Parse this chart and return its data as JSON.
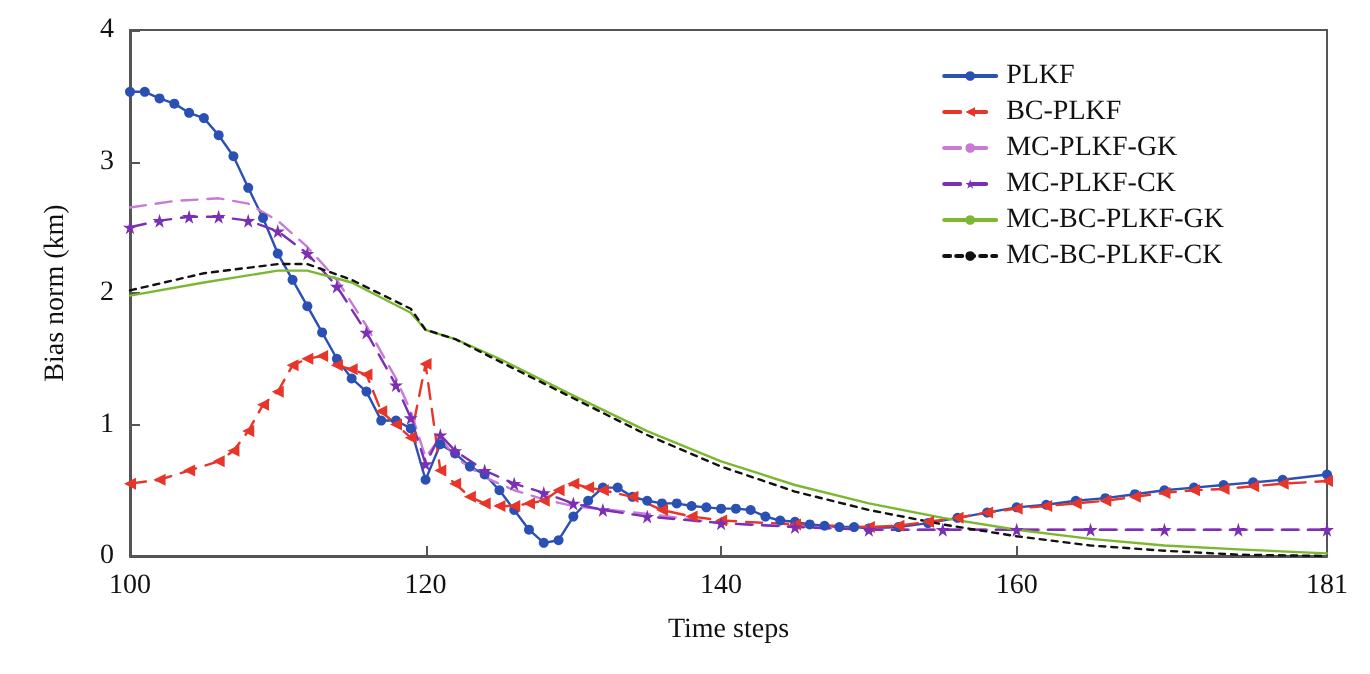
{
  "chart_data": {
    "type": "line",
    "xlabel": "Time steps",
    "ylabel": "Bias norm (km)",
    "xlim": [
      100,
      181
    ],
    "ylim": [
      0,
      4
    ],
    "xticks": [
      100,
      120,
      140,
      160,
      181
    ],
    "yticks": [
      0,
      1,
      2,
      3,
      4
    ],
    "grid": false,
    "legend": "top right",
    "series": [
      {
        "name": "PLKF",
        "color": "#2b50b4",
        "marker": "circle",
        "line_style": "solid",
        "x": [
          100,
          101,
          102,
          103,
          104,
          105,
          106,
          107,
          108,
          109,
          110,
          111,
          112,
          113,
          114,
          115,
          116,
          117,
          118,
          119,
          120,
          121,
          122,
          123,
          124,
          125,
          126,
          127,
          128,
          129,
          130,
          131,
          132,
          133,
          134,
          135,
          136,
          137,
          138,
          139,
          140,
          141,
          142,
          143,
          144,
          145,
          146,
          147,
          148,
          149,
          150,
          152,
          154,
          156,
          158,
          160,
          162,
          164,
          166,
          168,
          170,
          172,
          174,
          176,
          178,
          181
        ],
        "values": [
          3.53,
          3.53,
          3.48,
          3.44,
          3.37,
          3.33,
          3.2,
          3.04,
          2.8,
          2.57,
          2.3,
          2.1,
          1.9,
          1.7,
          1.5,
          1.35,
          1.25,
          1.03,
          1.03,
          0.97,
          0.58,
          0.85,
          0.78,
          0.68,
          0.62,
          0.5,
          0.35,
          0.2,
          0.1,
          0.12,
          0.3,
          0.42,
          0.52,
          0.52,
          0.45,
          0.42,
          0.4,
          0.4,
          0.38,
          0.37,
          0.36,
          0.36,
          0.35,
          0.3,
          0.27,
          0.26,
          0.24,
          0.23,
          0.22,
          0.22,
          0.21,
          0.22,
          0.25,
          0.29,
          0.33,
          0.37,
          0.39,
          0.42,
          0.44,
          0.47,
          0.5,
          0.52,
          0.54,
          0.56,
          0.58,
          0.62
        ]
      },
      {
        "name": "BC-PLKF",
        "color": "#e8352a",
        "marker": "triangle",
        "line_style": "dashed",
        "x": [
          100,
          102,
          104,
          106,
          107,
          108,
          109,
          110,
          111,
          112,
          113,
          114,
          115,
          116,
          117,
          118,
          119,
          120,
          121,
          122,
          123,
          124,
          125,
          126,
          127,
          128,
          129,
          130,
          131,
          132,
          134,
          136,
          138,
          140,
          145,
          150,
          152,
          154,
          156,
          158,
          160,
          162,
          164,
          166,
          168,
          170,
          172,
          174,
          176,
          178,
          181
        ],
        "values": [
          0.55,
          0.58,
          0.65,
          0.72,
          0.8,
          0.95,
          1.15,
          1.25,
          1.45,
          1.5,
          1.52,
          1.45,
          1.42,
          1.38,
          1.1,
          1.0,
          0.9,
          1.46,
          0.65,
          0.55,
          0.45,
          0.4,
          0.38,
          0.38,
          0.4,
          0.42,
          0.5,
          0.55,
          0.52,
          0.5,
          0.45,
          0.35,
          0.3,
          0.27,
          0.24,
          0.22,
          0.23,
          0.26,
          0.29,
          0.33,
          0.36,
          0.38,
          0.4,
          0.42,
          0.45,
          0.48,
          0.5,
          0.51,
          0.53,
          0.55,
          0.57
        ]
      },
      {
        "name": "MC-PLKF-GK",
        "color": "#c77ad6",
        "marker": "none",
        "line_style": "dashed",
        "x": [
          100,
          103,
          106,
          108,
          110,
          112,
          114,
          116,
          118,
          119,
          120,
          121,
          122,
          124,
          126,
          128,
          130,
          135,
          140,
          150,
          160,
          170,
          181
        ],
        "values": [
          2.65,
          2.7,
          2.72,
          2.68,
          2.55,
          2.35,
          2.1,
          1.75,
          1.35,
          1.1,
          0.75,
          0.9,
          0.75,
          0.6,
          0.5,
          0.43,
          0.38,
          0.32,
          0.25,
          0.2,
          0.2,
          0.2,
          0.2
        ]
      },
      {
        "name": "MC-PLKF-CK",
        "color": "#7b2fb5",
        "marker": "star",
        "line_style": "dashed",
        "x": [
          100,
          102,
          104,
          106,
          108,
          110,
          112,
          114,
          116,
          118,
          119,
          120,
          121,
          122,
          124,
          126,
          128,
          130,
          132,
          135,
          140,
          145,
          150,
          155,
          160,
          165,
          170,
          175,
          181
        ],
        "values": [
          2.5,
          2.55,
          2.58,
          2.58,
          2.55,
          2.47,
          2.3,
          2.05,
          1.7,
          1.3,
          1.05,
          0.7,
          0.92,
          0.8,
          0.65,
          0.55,
          0.48,
          0.4,
          0.35,
          0.3,
          0.25,
          0.22,
          0.2,
          0.2,
          0.2,
          0.2,
          0.2,
          0.2,
          0.2
        ]
      },
      {
        "name": "MC-BC-PLKF-GK",
        "color": "#7cb82f",
        "marker": "none",
        "line_style": "solid",
        "x": [
          100,
          105,
          110,
          112,
          115,
          119,
          120,
          122,
          125,
          130,
          135,
          140,
          145,
          150,
          155,
          160,
          165,
          170,
          175,
          181
        ],
        "values": [
          1.98,
          2.08,
          2.17,
          2.17,
          2.08,
          1.85,
          1.72,
          1.65,
          1.5,
          1.22,
          0.95,
          0.72,
          0.54,
          0.4,
          0.29,
          0.2,
          0.13,
          0.08,
          0.05,
          0.02
        ]
      },
      {
        "name": "MC-BC-PLKF-CK",
        "color": "#111111",
        "marker": "none",
        "line_style": "dotted",
        "x": [
          100,
          105,
          110,
          112,
          115,
          119,
          120,
          122,
          125,
          130,
          135,
          140,
          145,
          150,
          155,
          160,
          165,
          170,
          175,
          181
        ],
        "values": [
          2.02,
          2.15,
          2.22,
          2.22,
          2.1,
          1.88,
          1.72,
          1.65,
          1.48,
          1.2,
          0.92,
          0.68,
          0.49,
          0.35,
          0.24,
          0.15,
          0.08,
          0.04,
          0.01,
          0.0
        ]
      }
    ]
  }
}
